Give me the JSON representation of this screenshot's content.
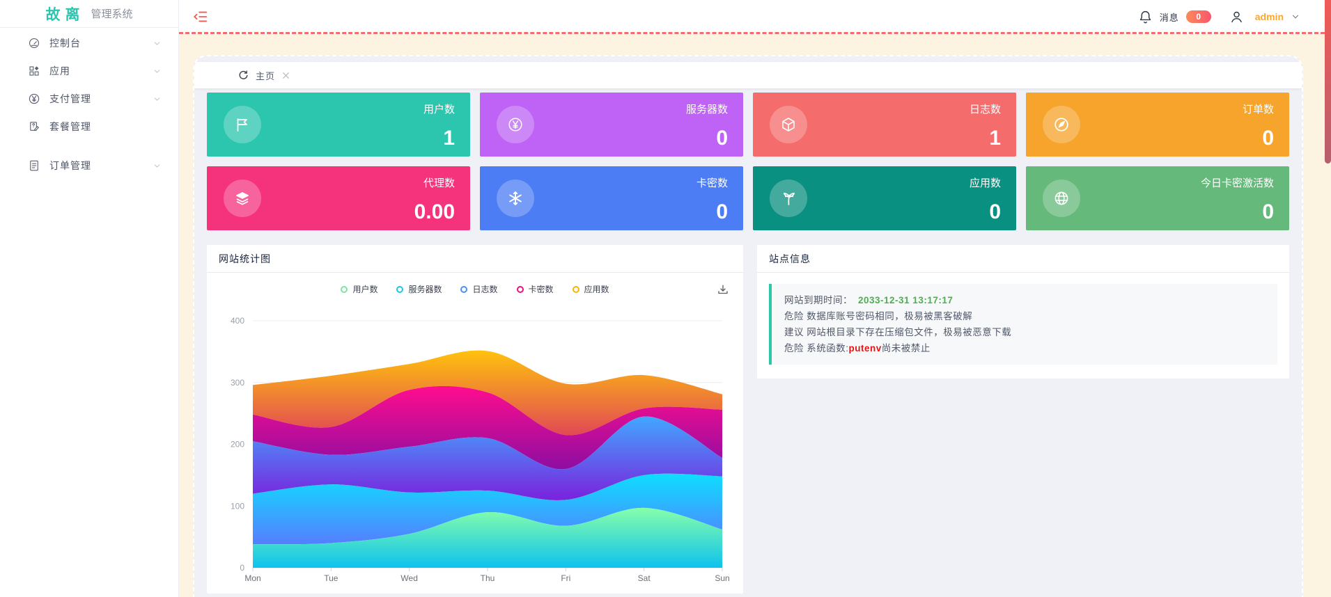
{
  "app": {
    "logo_main": "故离",
    "logo_sub": "管理系统"
  },
  "sidebar": {
    "items": [
      {
        "label": "控制台",
        "icon": "gauge-icon",
        "chevron": true,
        "gap": false
      },
      {
        "label": "应用",
        "icon": "grid-icon",
        "chevron": true,
        "gap": false
      },
      {
        "label": "支付管理",
        "icon": "yen-circle-icon",
        "chevron": true,
        "gap": false
      },
      {
        "label": "套餐管理",
        "icon": "doc-edit-icon",
        "chevron": false,
        "gap": false
      },
      {
        "label": "订单管理",
        "icon": "doc-icon",
        "chevron": true,
        "gap": true
      }
    ]
  },
  "topbar": {
    "messages_label": "消息",
    "messages_count": "0",
    "username": "admin"
  },
  "tabs": {
    "items": [
      {
        "label": "主页"
      }
    ]
  },
  "stat_cards": [
    {
      "label": "用户数",
      "value": "1",
      "color": "#2cc6ae",
      "icon": "flag-icon"
    },
    {
      "label": "服务器数",
      "value": "0",
      "color": "#be63f5",
      "icon": "yen-circle-icon"
    },
    {
      "label": "日志数",
      "value": "1",
      "color": "#f56c6c",
      "icon": "cube-icon"
    },
    {
      "label": "订单数",
      "value": "0",
      "color": "#f6a42b",
      "icon": "compass-icon"
    },
    {
      "label": "代理数",
      "value": "0.00",
      "color": "#f5337d",
      "icon": "layers-icon"
    },
    {
      "label": "卡密数",
      "value": "0",
      "color": "#4c7df5",
      "icon": "snowflake-icon"
    },
    {
      "label": "应用数",
      "value": "0",
      "color": "#0a9080",
      "icon": "palm-icon"
    },
    {
      "label": "今日卡密激活数",
      "value": "0",
      "color": "#65b97b",
      "icon": "globe-icon"
    }
  ],
  "chart_panel": {
    "title": "网站统计图"
  },
  "chart_data": {
    "type": "area",
    "stacked": true,
    "smooth": true,
    "grid": true,
    "legend_position": "top",
    "categories": [
      "Mon",
      "Tue",
      "Wed",
      "Thu",
      "Fri",
      "Sat",
      "Sun"
    ],
    "ylim": [
      0,
      400
    ],
    "yticks": [
      0,
      100,
      200,
      300,
      400
    ],
    "series": [
      {
        "name": "用户数",
        "values": [
          38,
          40,
          55,
          90,
          68,
          97,
          62
        ],
        "legend_color": "#7ce6a0",
        "gradient_top": "#80ffa5",
        "gradient_bottom": "#01bfec"
      },
      {
        "name": "服务器数",
        "values": [
          82,
          95,
          67,
          35,
          42,
          53,
          86
        ],
        "legend_color": "#18c8e8",
        "gradient_top": "#00ddff",
        "gradient_bottom": "#4d77ff"
      },
      {
        "name": "日志数",
        "values": [
          85,
          48,
          74,
          85,
          50,
          95,
          30
        ],
        "legend_color": "#4690f7",
        "gradient_top": "#37a2ff",
        "gradient_bottom": "#7415db"
      },
      {
        "name": "卡密数",
        "values": [
          43,
          45,
          92,
          74,
          55,
          13,
          78
        ],
        "legend_color": "#e9127e",
        "gradient_top": "#ff0087",
        "gradient_bottom": "#87009d"
      },
      {
        "name": "应用数",
        "values": [
          48,
          83,
          42,
          67,
          83,
          54,
          25
        ],
        "legend_color": "#f7b500",
        "gradient_top": "#ffbf00",
        "gradient_bottom": "#e03e4c"
      }
    ]
  },
  "site_info": {
    "title": "站点信息",
    "expire_label": "网站到期时间：",
    "expire_value": "2033-12-31 13:17:17",
    "warning1": "危险 数据库账号密码相同，极易被黑客破解",
    "warning2": "建议 网站根目录下存在压缩包文件，极易被恶意下载",
    "func_line": {
      "prefix": "危险 系统函数:",
      "highlight": "putenv",
      "suffix": "尚未被禁止"
    }
  },
  "colors": {
    "accent_red": "#f56c6c",
    "frame_cream": "#fcf3e1",
    "logo_teal": "#2bc5b0",
    "badge_gradient": [
      "#fc8a5a",
      "#f8566c"
    ],
    "info_border_teal": "#2cc7a7"
  }
}
